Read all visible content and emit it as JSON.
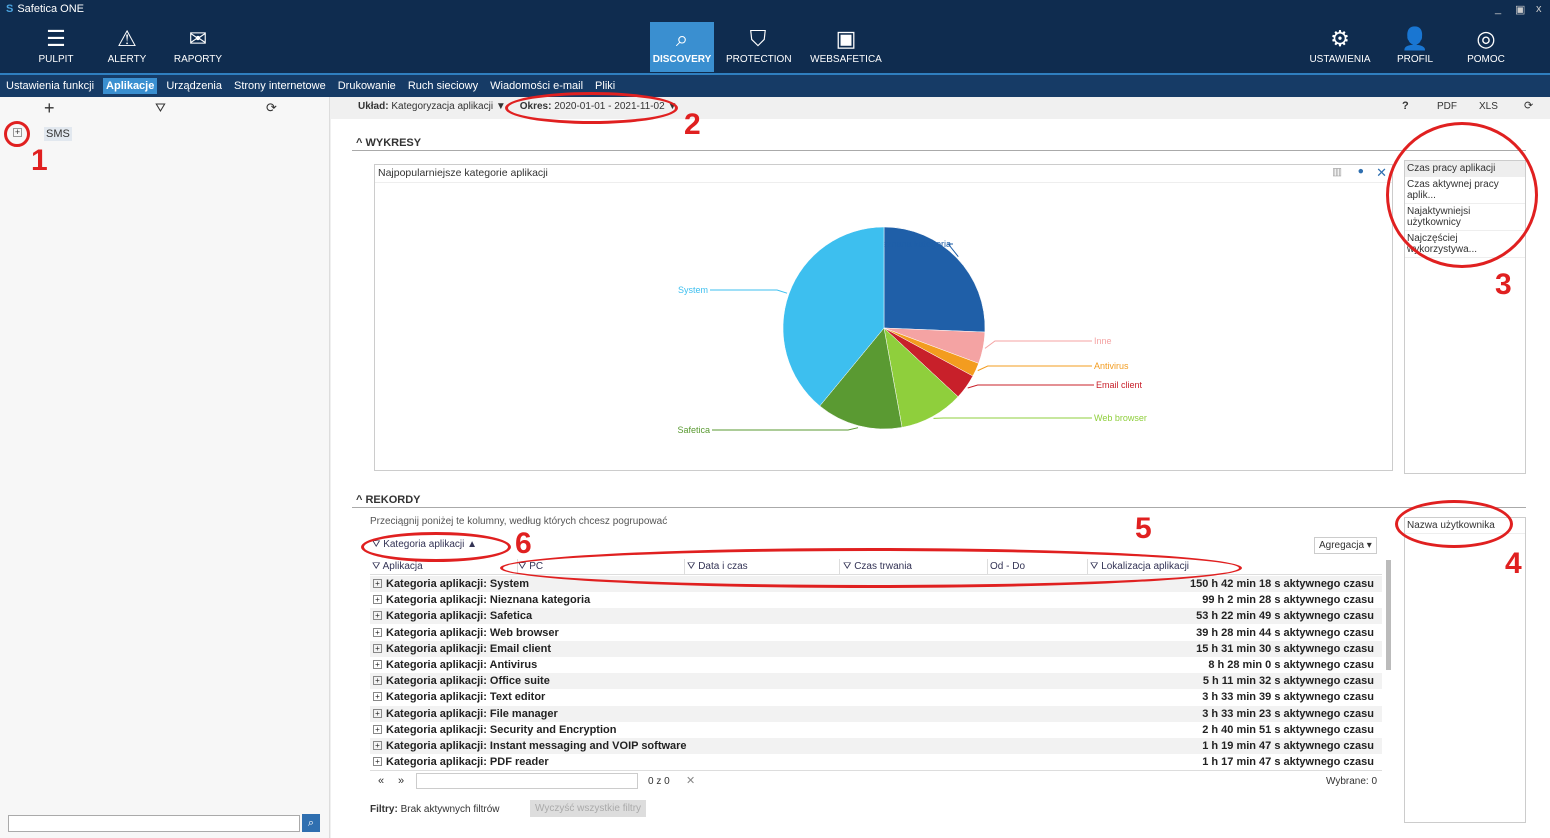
{
  "window": {
    "title": "Safetica ONE"
  },
  "nav_left": [
    {
      "label": "PULPIT",
      "icon": "dashboard-icon"
    },
    {
      "label": "ALERTY",
      "icon": "warning-icon"
    },
    {
      "label": "RAPORTY",
      "icon": "mail-icon"
    }
  ],
  "nav_center": [
    {
      "label": "DISCOVERY",
      "icon": "search-icon",
      "active": true
    },
    {
      "label": "PROTECTION",
      "icon": "shield-icon"
    },
    {
      "label": "WEBSAFETICA",
      "icon": "websafetica-icon"
    }
  ],
  "nav_right": [
    {
      "label": "USTAWIENIA",
      "icon": "gear-icon"
    },
    {
      "label": "PROFIL",
      "icon": "user-icon"
    },
    {
      "label": "POMOC",
      "icon": "lifebuoy-icon"
    }
  ],
  "subtabs": [
    "Ustawienia funkcji",
    "Aplikacje",
    "Urządzenia",
    "Strony internetowe",
    "Drukowanie",
    "Ruch sieciowy",
    "Wiadomości e-mail",
    "Pliki"
  ],
  "active_subtab": "Aplikacje",
  "tree": {
    "item": "SMS"
  },
  "toolbar": {
    "layout_label": "Układ:",
    "layout_value": "Kategoryzacja aplikacji",
    "period_label": "Okres:",
    "period_value": "2020-01-01 - 2021-11-02",
    "help": "?",
    "pdf": "PDF",
    "xls": "XLS"
  },
  "charts": {
    "section": "WYKRESY",
    "title": "Najpopularniejsze kategorie aplikacji",
    "options": [
      "Czas pracy aplikacji",
      "Czas aktywnej pracy aplik...",
      "Najaktywniejsi użytkownicy",
      "Najczęściej wykorzystywa..."
    ]
  },
  "chart_data": {
    "type": "pie",
    "title": "Najpopularniejsze kategorie aplikacji",
    "series": [
      {
        "name": "Nieznana kategoria",
        "value": 99.0,
        "color": "#1f5fa8"
      },
      {
        "name": "Inne",
        "value": 19.5,
        "color": "#f4a3a3"
      },
      {
        "name": "Antivirus",
        "value": 8.5,
        "color": "#f39c1f"
      },
      {
        "name": "Email client",
        "value": 15.5,
        "color": "#c8202a"
      },
      {
        "name": "Web browser",
        "value": 39.5,
        "color": "#8fcf3c"
      },
      {
        "name": "Safetica",
        "value": 53.4,
        "color": "#5a9a32"
      },
      {
        "name": "System",
        "value": 150.7,
        "color": "#3dbfef"
      }
    ]
  },
  "records": {
    "section": "REKORDY",
    "hint": "Przeciągnij poniżej te kolumny, według których chcesz pogrupować",
    "group_chip": "Kategoria aplikacji",
    "aggregation": "Agregacja",
    "side_option": "Nazwa użytkownika",
    "columns": [
      "Aplikacja",
      "PC",
      "Data i czas",
      "Czas trwania",
      "Od - Do",
      "Lokalizacja aplikacji"
    ],
    "rows": [
      {
        "label": "Kategoria aplikacji: System",
        "value": "150 h 42 min 18 s aktywnego czasu"
      },
      {
        "label": "Kategoria aplikacji: Nieznana kategoria",
        "value": "99 h 2 min 28 s aktywnego czasu"
      },
      {
        "label": "Kategoria aplikacji: Safetica",
        "value": "53 h 22 min 49 s aktywnego czasu"
      },
      {
        "label": "Kategoria aplikacji: Web browser",
        "value": "39 h 28 min 44 s aktywnego czasu"
      },
      {
        "label": "Kategoria aplikacji: Email client",
        "value": "15 h 31 min 30 s aktywnego czasu"
      },
      {
        "label": "Kategoria aplikacji: Antivirus",
        "value": "8 h 28 min 0 s aktywnego czasu"
      },
      {
        "label": "Kategoria aplikacji: Office suite",
        "value": "5 h 11 min 32 s aktywnego czasu"
      },
      {
        "label": "Kategoria aplikacji: Text editor",
        "value": "3 h 33 min 39 s aktywnego czasu"
      },
      {
        "label": "Kategoria aplikacji: File manager",
        "value": "3 h 33 min 23 s aktywnego czasu"
      },
      {
        "label": "Kategoria aplikacji: Security and Encryption",
        "value": "2 h 40 min 51 s aktywnego czasu"
      },
      {
        "label": "Kategoria aplikacji: Instant messaging and VOIP software",
        "value": "1 h 19 min 47 s aktywnego czasu"
      },
      {
        "label": "Kategoria aplikacji: PDF reader",
        "value": "1 h 17 min 47 s aktywnego czasu"
      }
    ],
    "pager": "0 z 0",
    "selected": "Wybrane: 0",
    "filters_label": "Filtry:",
    "filters_value": "Brak aktywnych filtrów",
    "clear_filters": "Wyczyść wszystkie filtry"
  },
  "annotations": [
    "1",
    "2",
    "3",
    "4",
    "5",
    "6"
  ]
}
